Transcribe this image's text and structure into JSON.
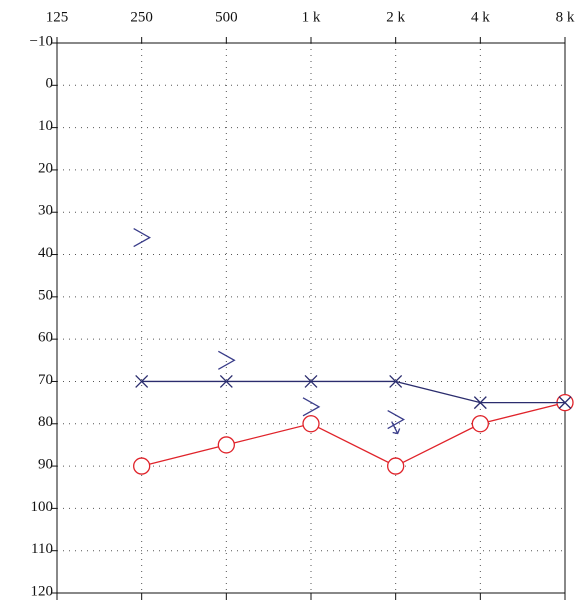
{
  "chart_data": {
    "type": "line",
    "xscale": "log",
    "xlim": [
      125,
      8000
    ],
    "xticks": [
      125,
      250,
      500,
      {
        "value": 1000,
        "label": "1 k"
      },
      {
        "value": 2000,
        "label": "2 k"
      },
      {
        "value": 4000,
        "label": "4 k"
      },
      {
        "value": 8000,
        "label": "8 k"
      }
    ],
    "ylim": [
      -10,
      120
    ],
    "yticks": [
      {
        "value": -10,
        "label": "−10"
      },
      0,
      10,
      20,
      30,
      40,
      50,
      60,
      70,
      80,
      90,
      100,
      110,
      120
    ],
    "y_inverted": true,
    "grid": true,
    "series": [
      {
        "color": "#e0232a",
        "marker": "o",
        "connected": true,
        "x": [
          250,
          500,
          1000,
          2000,
          4000,
          8000
        ],
        "values": [
          90,
          85,
          80,
          90,
          80,
          75
        ]
      },
      {
        "color": "#2b2d6e",
        "marker": "x",
        "connected": true,
        "x": [
          250,
          500,
          1000,
          2000,
          4000,
          8000
        ],
        "values": [
          70,
          70,
          70,
          70,
          75,
          75
        ]
      },
      {
        "color": "#3a3d8a",
        "marker": ">",
        "connected": false,
        "x": [
          250,
          500,
          1000,
          2000
        ],
        "values": [
          36,
          65,
          76,
          79
        ],
        "no_response": [
          false,
          false,
          false,
          true
        ]
      }
    ]
  }
}
